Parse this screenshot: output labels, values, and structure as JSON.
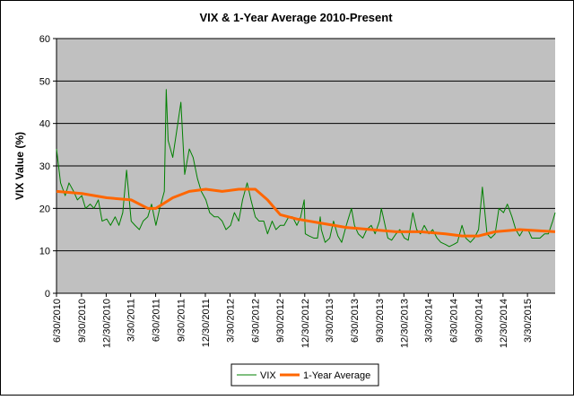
{
  "chart_data": {
    "type": "line",
    "title": "VIX & 1-Year Average 2010-Present",
    "y_label": "VIX Value (%)",
    "ylim": [
      0,
      60
    ],
    "yticks": [
      0,
      10,
      20,
      30,
      40,
      50,
      60
    ],
    "grid": true,
    "xlim": [
      "6/30/2010",
      "7/10/2015"
    ],
    "xticks": [
      "6/30/2010",
      "9/30/2010",
      "12/30/2010",
      "3/30/2011",
      "6/30/2011",
      "9/30/2011",
      "12/30/2011",
      "3/30/2012",
      "6/30/2012",
      "9/30/2012",
      "12/30/2012",
      "3/30/2013",
      "6/30/2013",
      "9/30/2013",
      "12/30/2013",
      "3/30/2014",
      "6/30/2014",
      "9/30/2014",
      "12/30/2014",
      "3/30/2015"
    ],
    "legend": "bottom",
    "series": [
      {
        "name": "VIX",
        "color": "#008000",
        "x": [
          "6/30/2010",
          "7/15/2010",
          "8/1/2010",
          "8/15/2010",
          "9/1/2010",
          "9/15/2010",
          "10/1/2010",
          "10/15/2010",
          "11/1/2010",
          "11/15/2010",
          "12/1/2010",
          "12/15/2010",
          "1/1/2011",
          "1/15/2011",
          "2/1/2011",
          "2/15/2011",
          "3/1/2011",
          "3/15/2011",
          "4/1/2011",
          "4/15/2011",
          "5/1/2011",
          "5/15/2011",
          "6/1/2011",
          "6/15/2011",
          "7/1/2011",
          "7/15/2011",
          "8/1/2011",
          "8/8/2011",
          "8/15/2011",
          "9/1/2011",
          "9/15/2011",
          "10/1/2011",
          "10/15/2011",
          "11/1/2011",
          "11/15/2011",
          "12/1/2011",
          "12/15/2011",
          "1/1/2012",
          "1/15/2012",
          "2/1/2012",
          "2/15/2012",
          "3/1/2012",
          "3/15/2012",
          "4/1/2012",
          "4/15/2012",
          "5/1/2012",
          "5/15/2012",
          "6/1/2012",
          "6/15/2012",
          "7/1/2012",
          "7/15/2012",
          "8/1/2012",
          "8/15/2012",
          "9/1/2012",
          "9/15/2012",
          "10/1/2012",
          "10/15/2012",
          "11/1/2012",
          "11/15/2012",
          "12/1/2012",
          "12/15/2012",
          "12/28/2012",
          "1/1/2013",
          "1/15/2013",
          "2/1/2013",
          "2/15/2013",
          "2/25/2013",
          "3/1/2013",
          "3/15/2013",
          "4/1/2013",
          "4/15/2013",
          "5/1/2013",
          "5/15/2013",
          "6/1/2013",
          "6/20/2013",
          "7/1/2013",
          "7/15/2013",
          "8/1/2013",
          "8/15/2013",
          "9/1/2013",
          "9/15/2013",
          "10/1/2013",
          "10/8/2013",
          "10/15/2013",
          "11/1/2013",
          "11/15/2013",
          "12/1/2013",
          "12/15/2013",
          "1/1/2014",
          "1/15/2014",
          "2/1/2014",
          "2/15/2014",
          "3/1/2014",
          "3/15/2014",
          "4/1/2014",
          "4/15/2014",
          "5/1/2014",
          "5/15/2014",
          "6/1/2014",
          "6/15/2014",
          "7/1/2014",
          "7/15/2014",
          "8/1/2014",
          "8/15/2014",
          "9/1/2014",
          "9/15/2014",
          "10/1/2014",
          "10/15/2014",
          "11/1/2014",
          "11/15/2014",
          "12/1/2014",
          "12/15/2014",
          "1/1/2015",
          "1/15/2015",
          "2/1/2015",
          "2/15/2015",
          "3/1/2015",
          "3/15/2015",
          "4/1/2015",
          "4/15/2015",
          "5/1/2015",
          "5/15/2015",
          "6/1/2015",
          "6/15/2015",
          "7/1/2015",
          "7/10/2015"
        ],
        "values": [
          34,
          26,
          23,
          26,
          24,
          22,
          23,
          20,
          21,
          20,
          22,
          17,
          17.5,
          16,
          18,
          16,
          19,
          29,
          17,
          16,
          15,
          17,
          18,
          21,
          16,
          20,
          24,
          48,
          36,
          32,
          38,
          45,
          28,
          34,
          32,
          27,
          24,
          22,
          19,
          18,
          18,
          17,
          15,
          16,
          19,
          17,
          22,
          26,
          22,
          18,
          17,
          17,
          14,
          17,
          15,
          16,
          16,
          18,
          18,
          16,
          18,
          22,
          14,
          13.5,
          13,
          13,
          18,
          15,
          12,
          13,
          17,
          13.5,
          12,
          16,
          20,
          16,
          14,
          13,
          15,
          16,
          14,
          17,
          20,
          18,
          13,
          12.5,
          14,
          15,
          13,
          12.5,
          19,
          15,
          14,
          16,
          14,
          15,
          13,
          12,
          11.5,
          11,
          11.5,
          12,
          16,
          13,
          12,
          13,
          15,
          25,
          14,
          13,
          14,
          20,
          19,
          21,
          18,
          15,
          13.5,
          15,
          15,
          13,
          13,
          13,
          14,
          14,
          17,
          19
        ]
      },
      {
        "name": "1-Year Average",
        "color": "#ff6600",
        "x": [
          "6/30/2010",
          "10/1/2010",
          "1/1/2011",
          "4/1/2011",
          "6/1/2011",
          "7/1/2011",
          "9/1/2011",
          "11/1/2011",
          "1/1/2012",
          "3/1/2012",
          "5/1/2012",
          "7/1/2012",
          "8/15/2012",
          "10/1/2012",
          "12/1/2012",
          "3/1/2013",
          "6/1/2013",
          "9/1/2013",
          "12/1/2013",
          "3/1/2014",
          "6/1/2014",
          "8/1/2014",
          "10/1/2014",
          "12/1/2014",
          "3/1/2015",
          "7/10/2015"
        ],
        "values": [
          24,
          23.5,
          22.5,
          22,
          20,
          20,
          22.5,
          24,
          24.5,
          24,
          24.5,
          24.5,
          22,
          18.5,
          17.5,
          16.5,
          15.5,
          15,
          14.5,
          14.5,
          14,
          13.5,
          13.5,
          14.5,
          15,
          14.5
        ]
      }
    ]
  }
}
